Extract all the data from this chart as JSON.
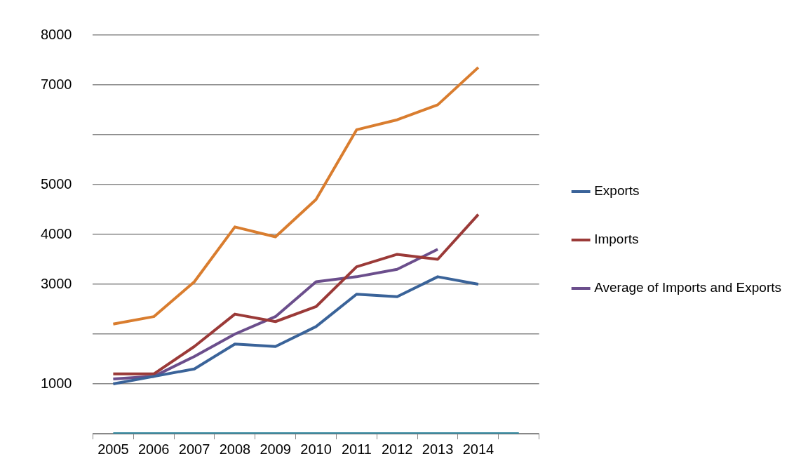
{
  "chart_data": {
    "type": "line",
    "categories": [
      "2005",
      "2006",
      "2007",
      "2008",
      "2009",
      "2010",
      "2011",
      "2012",
      "2013",
      "2014",
      null
    ],
    "series": [
      {
        "name": "Exports",
        "color": "#3a6399",
        "values": [
          1000,
          1150,
          1300,
          1800,
          1750,
          2150,
          2800,
          2750,
          3150,
          3000,
          null
        ]
      },
      {
        "name": "Imports",
        "color": "#9b3a38",
        "values": [
          1200,
          1200,
          1750,
          2400,
          2250,
          2550,
          3350,
          3600,
          3500,
          4400,
          null
        ]
      },
      {
        "name": "Average of Imports and Exports",
        "color": "#6b4e8c",
        "values": [
          1100,
          1150,
          1550,
          2000,
          2350,
          3050,
          3150,
          3300,
          3700,
          null,
          null
        ]
      },
      {
        "color": "#d97d2f",
        "values": [
          2200,
          2350,
          3050,
          4150,
          3950,
          4700,
          6100,
          6300,
          6600,
          7350,
          null
        ]
      },
      {
        "color": "#31859c",
        "values": [
          0,
          0,
          0,
          0,
          0,
          0,
          0,
          0,
          0,
          0,
          0
        ]
      }
    ],
    "ylim": [
      0,
      8000
    ],
    "yticks": [
      {
        "value": 0,
        "label": null
      },
      1000,
      {
        "value": 2000,
        "label": null
      },
      3000,
      4000,
      5000,
      {
        "value": 6000,
        "label": null
      },
      7000,
      8000
    ],
    "grid": "y",
    "legend": "right",
    "marker": "none",
    "line_style": "solid"
  }
}
